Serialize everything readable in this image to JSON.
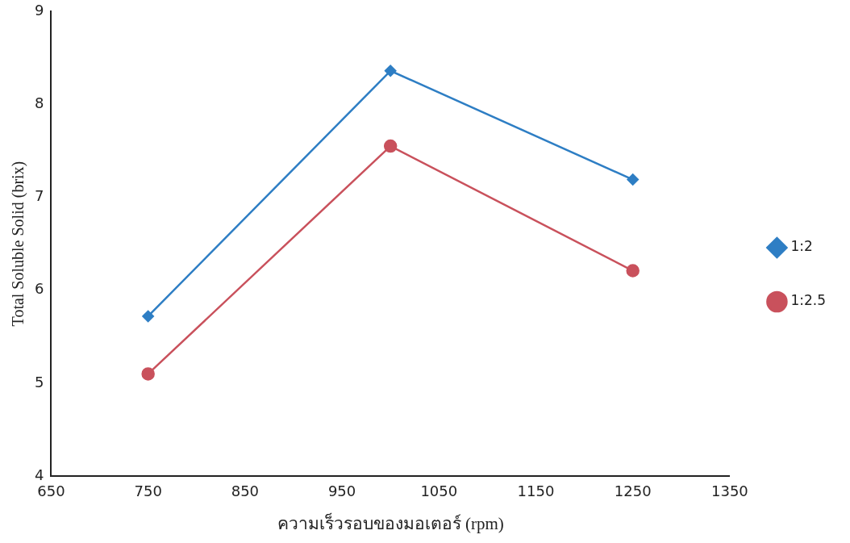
{
  "chart_data": {
    "type": "line",
    "xlabel": "ความเร็วรอบของมอเตอร์ (rpm)",
    "ylabel": "Total Soluble Solid (brix)",
    "x": [
      750,
      1000,
      1250
    ],
    "series": [
      {
        "name": "1:2",
        "color": "#2e7ec4",
        "marker": "diamond",
        "values": [
          5.72,
          8.36,
          7.19
        ]
      },
      {
        "name": "1:2.5",
        "color": "#c9515c",
        "marker": "circle",
        "values": [
          5.1,
          7.55,
          6.21
        ]
      }
    ],
    "xlim": [
      650,
      1350
    ],
    "xticks": [
      650,
      750,
      850,
      950,
      1050,
      1150,
      1250,
      1350
    ],
    "ylim": [
      4,
      9
    ],
    "yticks": [
      4,
      5,
      6,
      7,
      8,
      9
    ],
    "grid": false,
    "legend": "right",
    "line_style": "solid"
  }
}
